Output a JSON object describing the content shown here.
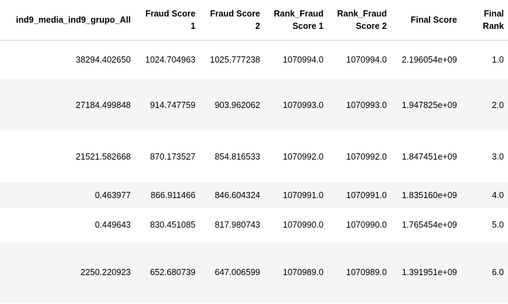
{
  "table": {
    "columns": [
      {
        "line1": "ind9_media_ind9_grupo_All",
        "line2": ""
      },
      {
        "line1": "Fraud Score",
        "line2": "1"
      },
      {
        "line1": "Fraud Score",
        "line2": "2"
      },
      {
        "line1": "Rank_Fraud",
        "line2": "Score 1"
      },
      {
        "line1": "Rank_Fraud",
        "line2": "Score 2"
      },
      {
        "line1": "Final Score",
        "line2": ""
      },
      {
        "line1": "Final",
        "line2": "Rank"
      }
    ],
    "rows": [
      [
        "38294.402650",
        "1024.704963",
        "1025.777238",
        "1070994.0",
        "1070994.0",
        "2.196054e+09",
        "1.0"
      ],
      [
        "27184.499848",
        "914.747759",
        "903.962062",
        "1070993.0",
        "1070993.0",
        "1.947825e+09",
        "2.0"
      ],
      [
        "21521.582668",
        "870.173527",
        "854.816533",
        "1070992.0",
        "1070992.0",
        "1.847451e+09",
        "3.0"
      ],
      [
        "0.463977",
        "866.911466",
        "846.604324",
        "1070991.0",
        "1070991.0",
        "1.835160e+09",
        "4.0"
      ],
      [
        "0.449643",
        "830.451085",
        "817.980743",
        "1070990.0",
        "1070990.0",
        "1.765454e+09",
        "5.0"
      ],
      [
        "2250.220923",
        "652.680739",
        "647.006599",
        "1070989.0",
        "1070989.0",
        "1.391951e+09",
        "6.0"
      ]
    ]
  }
}
